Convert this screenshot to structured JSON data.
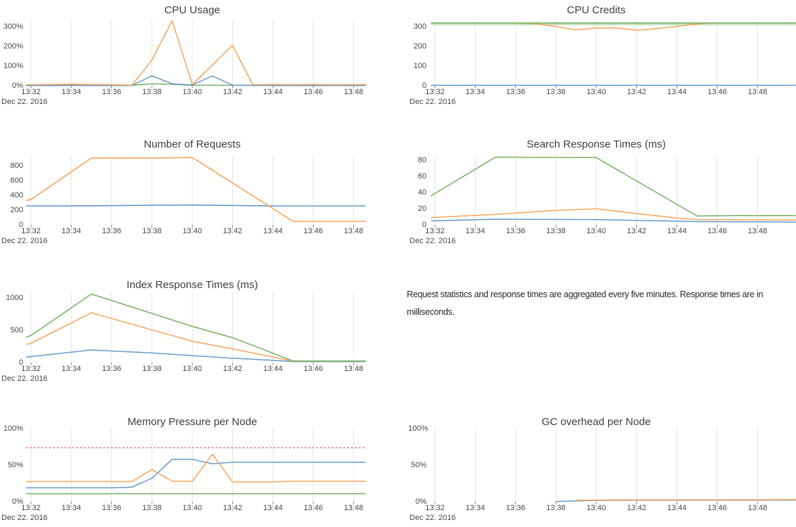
{
  "palette": {
    "blue": "#6699cc",
    "orange": "#f5a45c",
    "green": "#74b264",
    "lightgreen": "#c8e4bf",
    "red": "#ee8b8b",
    "grid": "#e5e5e5",
    "tickmark": "#888888"
  },
  "x_axis": {
    "ticks": [
      "13:32",
      "13:34",
      "13:36",
      "13:38",
      "13:40",
      "13:42",
      "13:44",
      "13:46",
      "13:48"
    ],
    "date_label": "Dec 22. 2016"
  },
  "annotation": {
    "text": "Request statistics and response times are aggregated every five minutes. Response times are in milliseconds."
  },
  "chart_data": [
    {
      "type": "line",
      "title": "CPU Usage",
      "x_unit": "minutes after 13:32 on Dec 22. 2016",
      "y_axis": {
        "min": 0,
        "max": 335,
        "ticks": [
          {
            "label": "0%",
            "value": 0
          },
          {
            "label": "100%",
            "value": 100
          },
          {
            "label": "200%",
            "value": 200
          },
          {
            "label": "300%",
            "value": 300
          }
        ]
      },
      "series": [
        {
          "name": "green-node",
          "color": "green",
          "width": 1.5,
          "points": [
            [
              -0.25,
              2
            ],
            [
              0,
              2
            ],
            [
              2,
              2.5
            ],
            [
              4,
              2
            ],
            [
              5,
              2
            ],
            [
              6,
              10
            ],
            [
              7,
              7
            ],
            [
              8,
              2
            ],
            [
              10,
              2
            ],
            [
              12,
              2
            ],
            [
              14,
              2
            ],
            [
              16.6,
              2
            ]
          ]
        },
        {
          "name": "blue-node",
          "color": "blue",
          "width": 1.5,
          "points": [
            [
              -0.25,
              1
            ],
            [
              0,
              1
            ],
            [
              2,
              1.5
            ],
            [
              4,
              1
            ],
            [
              5,
              1
            ],
            [
              6,
              50
            ],
            [
              7,
              10
            ],
            [
              8,
              4
            ],
            [
              9,
              50
            ],
            [
              10,
              2
            ],
            [
              12,
              1
            ],
            [
              14,
              1
            ],
            [
              16.6,
              1
            ]
          ]
        },
        {
          "name": "orange-node",
          "color": "orange",
          "width": 1.5,
          "points": [
            [
              -0.25,
              5
            ],
            [
              0,
              5
            ],
            [
              1,
              6
            ],
            [
              2,
              8
            ],
            [
              3,
              6
            ],
            [
              4,
              5
            ],
            [
              5,
              3
            ],
            [
              6,
              130
            ],
            [
              7,
              330
            ],
            [
              8,
              6
            ],
            [
              10,
              205
            ],
            [
              11,
              5
            ],
            [
              12,
              6
            ],
            [
              13,
              5
            ],
            [
              14,
              6
            ],
            [
              15,
              5
            ],
            [
              16.6,
              6
            ]
          ]
        }
      ]
    },
    {
      "type": "line",
      "title": "CPU Credits",
      "x_unit": "minutes after 13:32 on Dec 22. 2016",
      "y_axis": {
        "min": 0,
        "max": 337,
        "ticks": [
          {
            "label": "0",
            "value": 0
          },
          {
            "label": "100",
            "value": 100
          },
          {
            "label": "200",
            "value": 200
          },
          {
            "label": "300",
            "value": 300
          }
        ]
      },
      "series": [
        {
          "name": "green-band",
          "color": "lightgreen",
          "width": 4,
          "points": [
            [
              -0.2,
              315.5
            ],
            [
              17.9,
              315.5
            ]
          ]
        },
        {
          "name": "blue-node",
          "color": "blue",
          "width": 1.5,
          "points": [
            [
              -0.2,
              2
            ],
            [
              17.9,
              2
            ]
          ]
        },
        {
          "name": "orange-node",
          "color": "orange",
          "width": 1.5,
          "points": [
            [
              -0.2,
              320
            ],
            [
              4,
              320
            ],
            [
              5,
              317
            ],
            [
              6,
              302
            ],
            [
              7,
              285
            ],
            [
              8,
              294
            ],
            [
              9,
              295
            ],
            [
              10,
              283
            ],
            [
              11,
              292
            ],
            [
              12,
              303
            ],
            [
              13,
              314
            ],
            [
              13.6,
              320
            ],
            [
              17.9,
              320
            ]
          ]
        },
        {
          "name": "green-node",
          "color": "green",
          "width": 1.6,
          "points": [
            [
              -0.2,
              320
            ],
            [
              17.9,
              320
            ]
          ]
        }
      ]
    },
    {
      "type": "line",
      "title": "Number of Requests",
      "x_unit": "minutes after 13:32 on Dec 22. 2016",
      "y_axis": {
        "min": 0,
        "max": 933,
        "ticks": [
          {
            "label": "0",
            "value": 0
          },
          {
            "label": "200",
            "value": 200
          },
          {
            "label": "400",
            "value": 400
          },
          {
            "label": "600",
            "value": 600
          },
          {
            "label": "800",
            "value": 800
          }
        ]
      },
      "series": [
        {
          "name": "blue-requests",
          "color": "blue",
          "width": 1.6,
          "points": [
            [
              -0.25,
              257
            ],
            [
              0,
              257
            ],
            [
              3,
              258
            ],
            [
              6,
              266
            ],
            [
              8,
              268
            ],
            [
              10,
              263
            ],
            [
              12,
              257
            ],
            [
              16.6,
              257
            ]
          ]
        },
        {
          "name": "orange-requests",
          "color": "orange",
          "width": 1.6,
          "points": [
            [
              -0.25,
              330
            ],
            [
              0,
              345
            ],
            [
              3,
              905
            ],
            [
              6,
              906
            ],
            [
              8,
              912
            ],
            [
              13,
              48
            ],
            [
              16.6,
              48
            ]
          ]
        }
      ]
    },
    {
      "type": "line",
      "title": "Search Response Times (ms)",
      "x_unit": "minutes after 13:32 on Dec 22. 2016",
      "y_axis": {
        "min": 0,
        "max": 85.5,
        "ticks": [
          {
            "label": "0",
            "value": 0
          },
          {
            "label": "20",
            "value": 20
          },
          {
            "label": "40",
            "value": 40
          },
          {
            "label": "60",
            "value": 60
          },
          {
            "label": "80",
            "value": 80
          }
        ]
      },
      "series": [
        {
          "name": "green-search",
          "color": "green",
          "width": 1.5,
          "points": [
            [
              -0.2,
              36
            ],
            [
              3,
              84
            ],
            [
              8,
              83.5
            ],
            [
              13,
              11
            ],
            [
              15,
              11.5
            ],
            [
              17.9,
              11.5
            ]
          ]
        },
        {
          "name": "orange-search",
          "color": "orange",
          "width": 1.5,
          "points": [
            [
              -0.2,
              9
            ],
            [
              3,
              13
            ],
            [
              6,
              18
            ],
            [
              8,
              20
            ],
            [
              10,
              14
            ],
            [
              12,
              8.5
            ],
            [
              13,
              6.5
            ],
            [
              17.9,
              6
            ]
          ]
        },
        {
          "name": "blue-search",
          "color": "blue",
          "width": 1.5,
          "points": [
            [
              -0.2,
              5
            ],
            [
              3,
              7
            ],
            [
              8,
              6.5
            ],
            [
              12,
              4.5
            ],
            [
              13,
              4
            ],
            [
              17.9,
              3.5
            ]
          ]
        }
      ]
    },
    {
      "type": "line",
      "title": "Index Response Times (ms)",
      "x_unit": "minutes after 13:32 on Dec 22. 2016",
      "y_axis": {
        "min": 0,
        "max": 1098,
        "ticks": [
          {
            "label": "0",
            "value": 0
          },
          {
            "label": "500",
            "value": 500
          },
          {
            "label": "1000",
            "value": 1000
          }
        ]
      },
      "series": [
        {
          "name": "blue-index",
          "color": "blue",
          "width": 1.5,
          "points": [
            [
              -0.25,
              85
            ],
            [
              0,
              92
            ],
            [
              3,
              195
            ],
            [
              6,
              150
            ],
            [
              8,
              108
            ],
            [
              10,
              68
            ],
            [
              12,
              35
            ],
            [
              13,
              15
            ],
            [
              16.6,
              15
            ]
          ]
        },
        {
          "name": "orange-index",
          "color": "orange",
          "width": 1.5,
          "points": [
            [
              -0.25,
              280
            ],
            [
              0,
              300
            ],
            [
              3,
              770
            ],
            [
              8,
              330
            ],
            [
              10,
              212
            ],
            [
              13,
              22
            ],
            [
              16.6,
              22
            ]
          ]
        },
        {
          "name": "green-index",
          "color": "green",
          "width": 1.5,
          "points": [
            [
              -0.25,
              390
            ],
            [
              0,
              420
            ],
            [
              3,
              1060
            ],
            [
              8,
              560
            ],
            [
              10,
              385
            ],
            [
              13,
              25
            ],
            [
              16.6,
              25
            ]
          ]
        }
      ]
    },
    {
      "type": "line",
      "title": "Memory Pressure per Node",
      "x_unit": "minutes after 13:32 on Dec 22. 2016",
      "y_axis": {
        "min": 0,
        "max": 102,
        "ticks": [
          {
            "label": "0%",
            "value": 0
          },
          {
            "label": "50%",
            "value": 50
          },
          {
            "label": "100%",
            "value": 100
          }
        ]
      },
      "series": [
        {
          "name": "threshold",
          "color": "red",
          "width": 2,
          "dash": "2.5,3",
          "points": [
            [
              -0.25,
              74
            ],
            [
              16.6,
              74
            ]
          ]
        },
        {
          "name": "green-node",
          "color": "green",
          "width": 1.5,
          "points": [
            [
              -0.25,
              11
            ],
            [
              16.6,
              11
            ]
          ]
        },
        {
          "name": "blue-node",
          "color": "blue",
          "width": 1.5,
          "points": [
            [
              -0.25,
              19
            ],
            [
              4,
              19
            ],
            [
              5,
              20
            ],
            [
              6,
              32
            ],
            [
              7,
              58
            ],
            [
              8,
              58
            ],
            [
              9,
              52
            ],
            [
              10,
              54
            ],
            [
              16.6,
              54
            ]
          ]
        },
        {
          "name": "orange-node",
          "color": "orange",
          "width": 1.5,
          "points": [
            [
              -0.25,
              27.5
            ],
            [
              5,
              27.5
            ],
            [
              6,
              44
            ],
            [
              7,
              28
            ],
            [
              8,
              28
            ],
            [
              9,
              65
            ],
            [
              10,
              27
            ],
            [
              12,
              27
            ],
            [
              13,
              28
            ],
            [
              16.6,
              28
            ]
          ]
        }
      ]
    },
    {
      "type": "line",
      "title": "GC overhead per Node",
      "x_unit": "minutes after 13:32 on Dec 22. 2016",
      "y_axis": {
        "min": 0,
        "max": 102,
        "ticks": [
          {
            "label": "0%",
            "value": 0
          },
          {
            "label": "50%",
            "value": 50
          },
          {
            "label": "100%",
            "value": 100
          }
        ]
      },
      "series": [
        {
          "name": "blue-node",
          "color": "blue",
          "width": 1.5,
          "points": [
            [
              6,
              0.3
            ],
            [
              8,
              1.8
            ],
            [
              10,
              2
            ],
            [
              14,
              2.2
            ],
            [
              17.9,
              2.2
            ]
          ]
        },
        {
          "name": "orange-node",
          "color": "orange",
          "width": 1.5,
          "points": [
            [
              7,
              2
            ],
            [
              10,
              2.5
            ],
            [
              14,
              2.7
            ],
            [
              17.9,
              2.9
            ]
          ]
        }
      ]
    }
  ]
}
